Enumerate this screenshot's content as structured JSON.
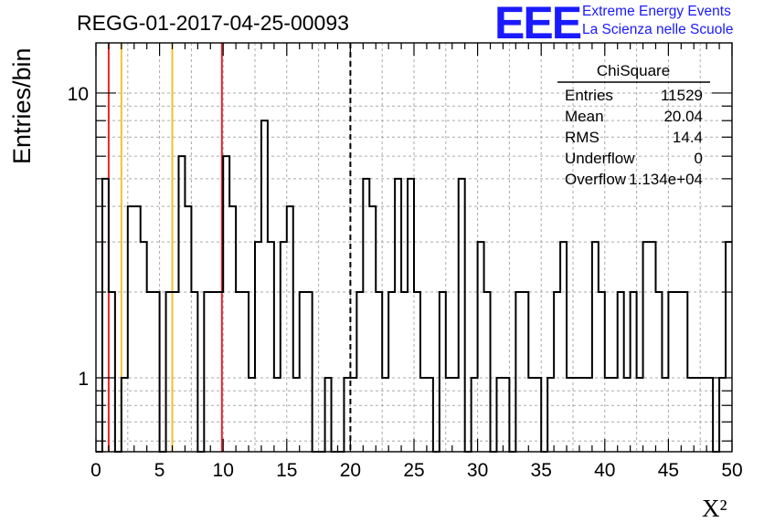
{
  "chart_data": {
    "type": "bar",
    "title": "REGG-01-2017-04-25-00093",
    "xlabel": "X²",
    "ylabel": "Entries/bin",
    "xlim": [
      0,
      50
    ],
    "ylim": [
      0.55,
      15
    ],
    "yscale": "log",
    "grid": true,
    "bin_width": 0.5,
    "bin_start": 0,
    "counts": [
      0,
      5,
      2,
      0,
      1,
      4,
      4,
      3,
      2,
      2,
      0,
      2,
      2,
      6,
      4,
      2,
      0,
      2,
      2,
      2,
      6,
      4,
      2,
      2,
      1,
      3,
      8,
      3,
      1,
      3,
      4,
      1,
      2,
      2,
      0,
      0,
      1,
      0,
      0,
      1,
      1,
      2,
      5,
      4,
      2,
      1,
      2,
      5,
      2,
      5,
      2,
      1,
      1,
      0,
      2,
      1,
      1,
      5,
      0,
      1,
      3,
      2,
      0,
      1,
      1,
      0,
      2,
      2,
      1,
      1,
      0,
      1,
      2,
      3,
      1,
      1,
      1,
      1,
      3,
      2,
      1,
      1,
      2,
      1,
      2,
      1,
      3,
      3,
      2,
      1,
      2,
      2,
      2,
      1,
      1,
      1,
      1,
      0,
      1,
      3
    ],
    "xticks": [
      "0",
      "5",
      "10",
      "15",
      "20",
      "25",
      "30",
      "35",
      "40",
      "45",
      "50"
    ],
    "yticks": [
      {
        "value": 1,
        "label": "1"
      },
      {
        "value": 10,
        "label": "10"
      }
    ],
    "vertical_lines": [
      {
        "x": 1.0,
        "color": "#e8242a",
        "style": "solid"
      },
      {
        "x": 2.0,
        "color": "#f2c12e",
        "style": "solid"
      },
      {
        "x": 6.0,
        "color": "#f2c12e",
        "style": "solid"
      },
      {
        "x": 9.9,
        "color": "#e8242a",
        "style": "solid"
      },
      {
        "x": 20.0,
        "color": "#000000",
        "style": "dashed"
      }
    ],
    "stats_box": {
      "title": "ChiSquare",
      "rows": [
        {
          "label": "Entries",
          "value": "11529"
        },
        {
          "label": "Mean",
          "value": "20.04"
        },
        {
          "label": "RMS",
          "value": "14.4"
        },
        {
          "label": "Underflow",
          "value": "0"
        },
        {
          "label": "Overflow",
          "value": "1.134e+04"
        }
      ]
    }
  },
  "logo": {
    "mark": "EEE",
    "line1": "Extreme Energy Events",
    "line2": "La Scienza nelle Scuole"
  },
  "colors": {
    "histogram": "#000000",
    "logo": "#1a1aff",
    "grid": "#aaaaaa"
  }
}
